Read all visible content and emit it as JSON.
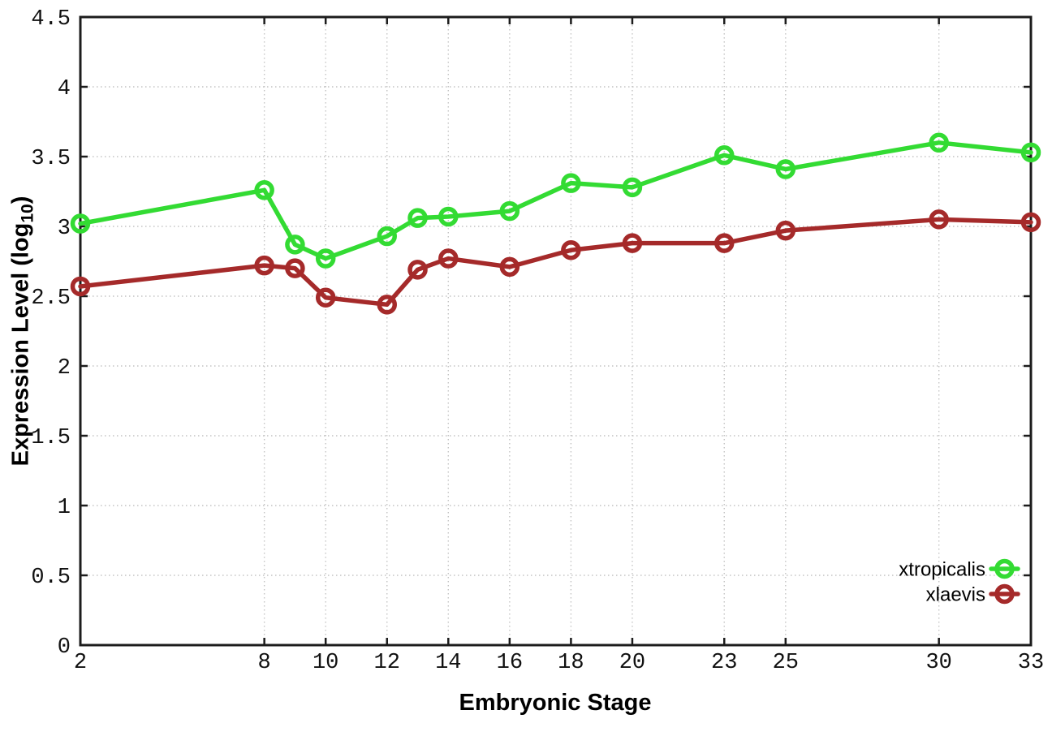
{
  "figure": {
    "background": "#ffffff",
    "border_color": "#1c1c1c",
    "grid_color": "#c4c4c4"
  },
  "labels": {
    "x_axis": "Embryonic Stage",
    "y_axis_pre": "Expression Level (log",
    "y_axis_sub": "10",
    "y_axis_post": ")"
  },
  "chart_data": {
    "type": "line",
    "title": "",
    "xlabel": "Embryonic Stage",
    "ylabel": "Expression Level (log10)",
    "x": [
      2,
      8,
      9,
      10,
      12,
      13,
      14,
      16,
      18,
      20,
      23,
      25,
      30,
      33
    ],
    "series": [
      {
        "name": "xtropicalis",
        "color": "#33db33",
        "marker": "open-circle",
        "values": [
          3.02,
          3.26,
          2.87,
          2.77,
          2.93,
          3.06,
          3.07,
          3.11,
          3.31,
          3.28,
          3.51,
          3.41,
          3.6,
          3.53
        ]
      },
      {
        "name": "xlaevis",
        "color": "#a52a2a",
        "marker": "open-circle",
        "values": [
          2.57,
          2.72,
          2.7,
          2.49,
          2.44,
          2.69,
          2.77,
          2.71,
          2.83,
          2.88,
          2.88,
          2.97,
          3.05,
          3.03
        ]
      }
    ],
    "xlim": [
      2,
      33
    ],
    "ylim": [
      0,
      4.5
    ],
    "xticks": {
      "values": [
        2,
        8,
        10,
        12,
        14,
        16,
        18,
        20,
        23,
        25,
        30,
        33
      ],
      "labels": [
        "2",
        "8",
        "10",
        "12",
        "14",
        "16",
        "18",
        "20",
        "23",
        "25",
        "30",
        "33"
      ]
    },
    "yticks": {
      "values": [
        0,
        0.5,
        1,
        1.5,
        2,
        2.5,
        3,
        3.5,
        4,
        4.5
      ],
      "labels": [
        "0",
        "0.5",
        "1",
        "1.5",
        "2",
        "2.5",
        "3",
        "3.5",
        "4",
        "4.5"
      ]
    },
    "grid": true,
    "legend": {
      "position": "inside-bottom-right",
      "entries": [
        "xtropicalis",
        "xlaevis"
      ]
    }
  }
}
